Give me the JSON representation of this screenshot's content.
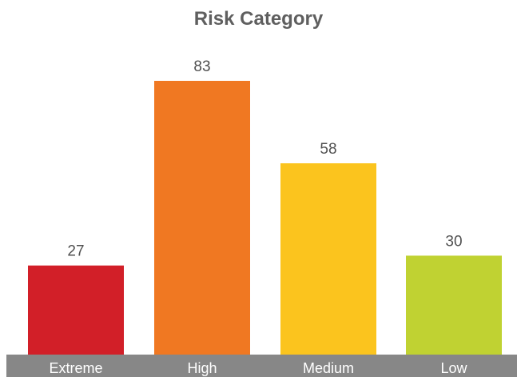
{
  "chart_data": {
    "type": "bar",
    "title": "Risk Category",
    "categories": [
      "Extreme",
      "High",
      "Medium",
      "Low"
    ],
    "values": [
      27,
      83,
      58,
      30
    ],
    "colors": [
      "#d21f28",
      "#f07822",
      "#fbc41e",
      "#c0d232"
    ],
    "xlabel": "",
    "ylabel": "",
    "ylim": [
      0,
      100
    ],
    "grid": false,
    "legend": "none",
    "category_band_color": "#878787",
    "category_label_color": "#ffffff",
    "value_label_color": "#505050"
  }
}
